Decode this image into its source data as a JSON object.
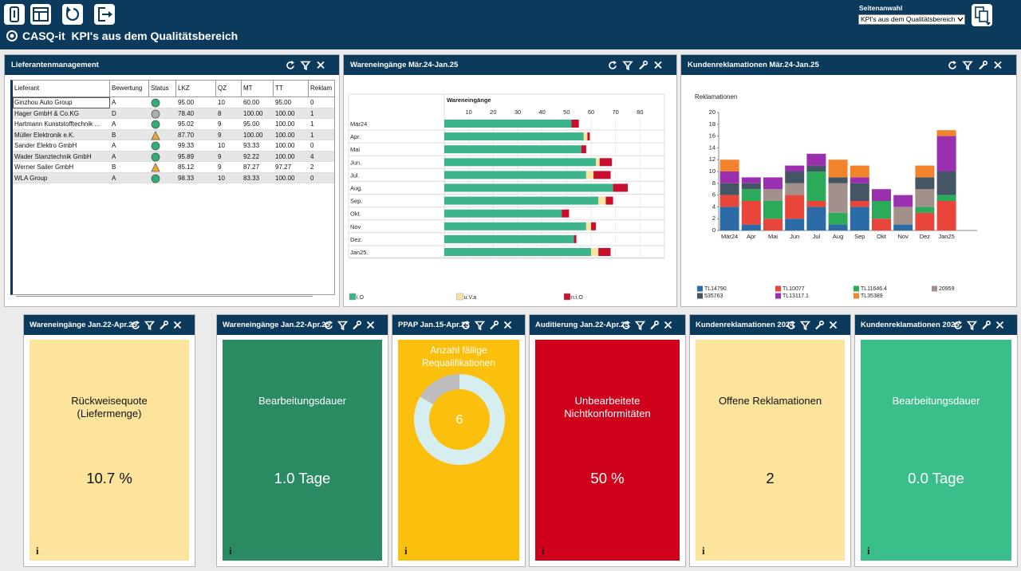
{
  "header": {
    "title": "CASQ-it  KPI's aus dem Qualitätsbereich",
    "page_select_label": "Seitenanwahl",
    "page_select_value": "KPI's aus dem Qualitätsbereich"
  },
  "supplier_panel": {
    "title": "Lieferantenmanagement",
    "columns": [
      "Lieferant",
      "Bewertung",
      "Status",
      "LKZ",
      "QZ",
      "MT",
      "TT",
      "Reklam"
    ],
    "rows": [
      [
        "Ginzhou Auto Group",
        "A",
        "95.00",
        "10",
        "60.00",
        "95.00",
        "0"
      ],
      [
        "Hager GmbH & Co.KG",
        "D",
        "78.40",
        "8",
        "100.00",
        "100.00",
        "1"
      ],
      [
        "Hartmann Kunststofftechnik ...",
        "A",
        "95.02",
        "9",
        "95.00",
        "100.00",
        "1"
      ],
      [
        "Müller Elektronik e.K.",
        "B",
        "87.70",
        "9",
        "100.00",
        "100.00",
        "1"
      ],
      [
        "Sander Elektro GmbH",
        "A",
        "99.33",
        "10",
        "93.33",
        "100.00",
        "0"
      ],
      [
        "Wader Stanztechnik GmbH",
        "A",
        "95.89",
        "9",
        "92.22",
        "100.00",
        "4"
      ],
      [
        "Werner Sailer GmbH",
        "B",
        "85.12",
        "9",
        "87.27",
        "97.27",
        "2"
      ],
      [
        "WLA Group",
        "A",
        "98.33",
        "10",
        "83.33",
        "100.00",
        "0"
      ]
    ]
  },
  "incoming_chart": {
    "type": "bar",
    "title": "Wareneingänge Mär.24-Jan.25",
    "x_label": "Wareneingänge",
    "categories": [
      "Mär24",
      "Apr.",
      "Mai",
      "Jun.",
      "Jul.",
      "Aug.",
      "Sep.",
      "Okt.",
      "Nov",
      "Dez.",
      "Jan25."
    ],
    "series": [
      {
        "name": "i.O",
        "color": "#3cb58a",
        "values": [
          52,
          57,
          56,
          62,
          58,
          69,
          63,
          48,
          58,
          53,
          60
        ]
      },
      {
        "name": "u.V.a",
        "color": "#fbe3a0",
        "values": [
          0,
          1.5,
          0,
          1.5,
          3,
          0,
          3,
          0,
          2,
          0,
          3
        ]
      },
      {
        "name": "n.i.O",
        "color": "#c8102e",
        "values": [
          3,
          1,
          2,
          5,
          7,
          6,
          3,
          3,
          2,
          1,
          5
        ]
      }
    ],
    "xlim": [
      0,
      90
    ],
    "xticks": [
      10,
      20,
      30,
      40,
      50,
      60,
      70,
      80
    ],
    "grid": true
  },
  "complaints_chart": {
    "type": "bar",
    "title": "Kundenreklamationen Mär.24-Jan.25",
    "y_label": "Reklamationen",
    "categories": [
      "Mär24",
      "Apr",
      "Mai",
      "Jun",
      "Jul",
      "Aug",
      "Sep",
      "Okt",
      "Nov",
      "Dez",
      "Jan25"
    ],
    "series": [
      {
        "name": "TL14790",
        "color": "#2b6ba8",
        "values": [
          4,
          1,
          0,
          2,
          4,
          1,
          4,
          0,
          1,
          0,
          0
        ]
      },
      {
        "name": "TL10077",
        "color": "#e9453a",
        "values": [
          2,
          4,
          2,
          4,
          1,
          0,
          1,
          2,
          0,
          3,
          5
        ]
      },
      {
        "name": "TL11646.4",
        "color": "#2bab5a",
        "values": [
          0,
          2,
          3,
          0,
          5,
          2,
          0,
          3,
          0,
          1,
          1
        ]
      },
      {
        "name": "20959",
        "color": "#a2908a",
        "values": [
          0,
          0,
          2,
          2,
          0,
          5,
          0,
          0,
          3,
          3,
          0
        ]
      },
      {
        "name": "535763",
        "color": "#445566",
        "values": [
          2,
          1,
          0,
          2,
          1,
          1,
          3,
          0,
          0,
          2,
          4
        ]
      },
      {
        "name": "TL13117.1",
        "color": "#9a2fb0",
        "values": [
          2,
          1,
          2,
          1,
          2,
          0,
          1,
          2,
          2,
          0,
          6
        ]
      },
      {
        "name": "TL35389",
        "color": "#f0832b",
        "values": [
          2,
          0,
          0,
          0,
          0,
          3,
          2,
          0,
          0,
          2,
          1
        ]
      }
    ],
    "ylim": [
      0,
      20
    ],
    "yticks": [
      0,
      2,
      4,
      6,
      8,
      10,
      12,
      14,
      16,
      18,
      20
    ]
  },
  "info_icon": "i",
  "kpi_tiles": [
    {
      "title": "Wareneingänge Jan.22-Apr.25",
      "label": "Rückweisequote (Liefermenge)",
      "value": "10.7 %",
      "color": "#fde49c",
      "text_color": "#111111"
    },
    {
      "title": "Wareneingänge Jan.22-Apr.25",
      "label": "Bearbeitungsdauer",
      "value": "1.0 Tage",
      "color": "#2a8a62",
      "text_color": "#ffffff"
    },
    {
      "title": "PPAP Jan.15-Apr.25",
      "label": "Anzahl fällige Requalifikationen",
      "value": "6",
      "color": "#fbbf0e",
      "text_color": "#ffffff",
      "donut": [
        {
          "value": 5,
          "color": "#d6eef0"
        },
        {
          "value": 1,
          "color": "#bdbdbd"
        }
      ]
    },
    {
      "title": "Auditierung Jan.22-Apr.25",
      "label": "Unbearbeitete Nichtkonformitäten",
      "value": "50 %",
      "color": "#d0021b",
      "text_color": "#ffffff"
    },
    {
      "title": "Kundenreklamationen 2024",
      "label": "Offene Reklamationen",
      "value": "2",
      "color": "#fde49c",
      "text_color": "#111111"
    },
    {
      "title": "Kundenreklamationen 2025",
      "label": "Bearbeitungsdauer",
      "value": "0.0 Tage",
      "color": "#3bbf8a",
      "text_color": "#ffffff"
    }
  ]
}
